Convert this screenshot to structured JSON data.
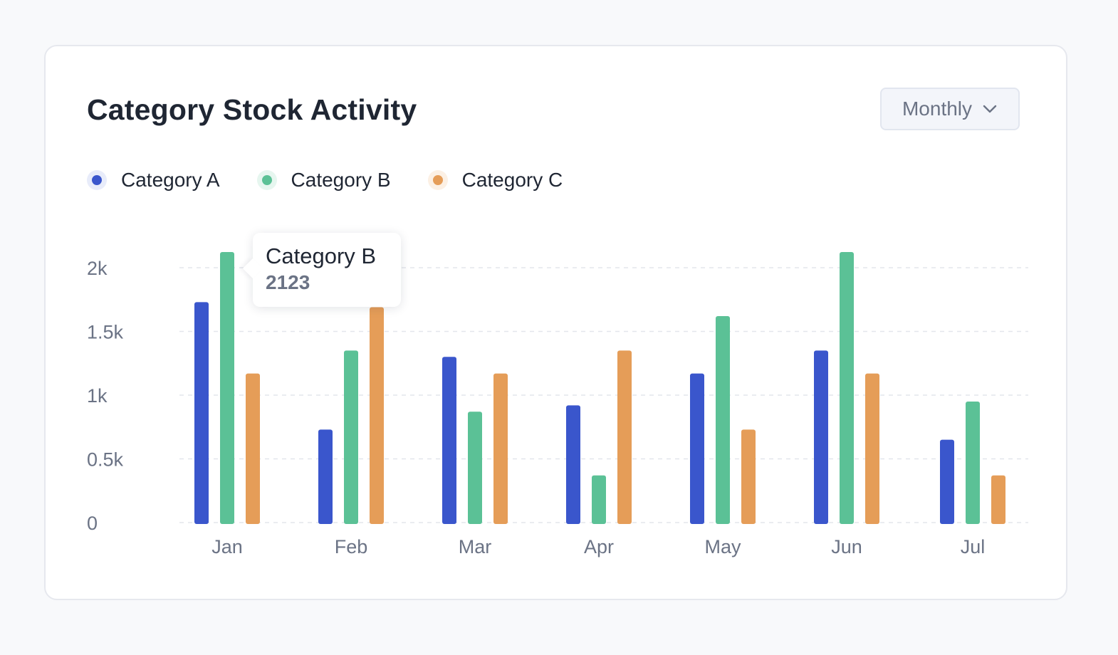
{
  "card": {
    "title": "Category Stock Activity",
    "period_select": {
      "value": "Monthly",
      "icon": "chevron-down-icon"
    }
  },
  "legend": [
    {
      "label": "Category A",
      "color": "#3a56cc"
    },
    {
      "label": "Category B",
      "color": "#5bc196"
    },
    {
      "label": "Category C",
      "color": "#e59d58"
    }
  ],
  "tooltip": {
    "series": "Category B",
    "value": "2123"
  },
  "chart_data": {
    "type": "bar",
    "categories": [
      "Jan",
      "Feb",
      "Mar",
      "Apr",
      "May",
      "Jun",
      "Jul"
    ],
    "series": [
      {
        "name": "Category A",
        "color": "#3a56cc",
        "values": [
          1730,
          730,
          1300,
          920,
          1170,
          1350,
          650
        ]
      },
      {
        "name": "Category B",
        "color": "#5bc196",
        "values": [
          2123,
          1350,
          870,
          370,
          1620,
          2123,
          950
        ]
      },
      {
        "name": "Category C",
        "color": "#e59d58",
        "values": [
          1170,
          1690,
          1170,
          1350,
          730,
          1170,
          370
        ]
      }
    ],
    "y_ticks": [
      0,
      500,
      1000,
      1500,
      2000
    ],
    "y_tick_labels": [
      "0",
      "0.5k",
      "1k",
      "1.5k",
      "2k"
    ],
    "ylim": [
      0,
      2000
    ],
    "grid": true,
    "legend_position": "top-left"
  }
}
